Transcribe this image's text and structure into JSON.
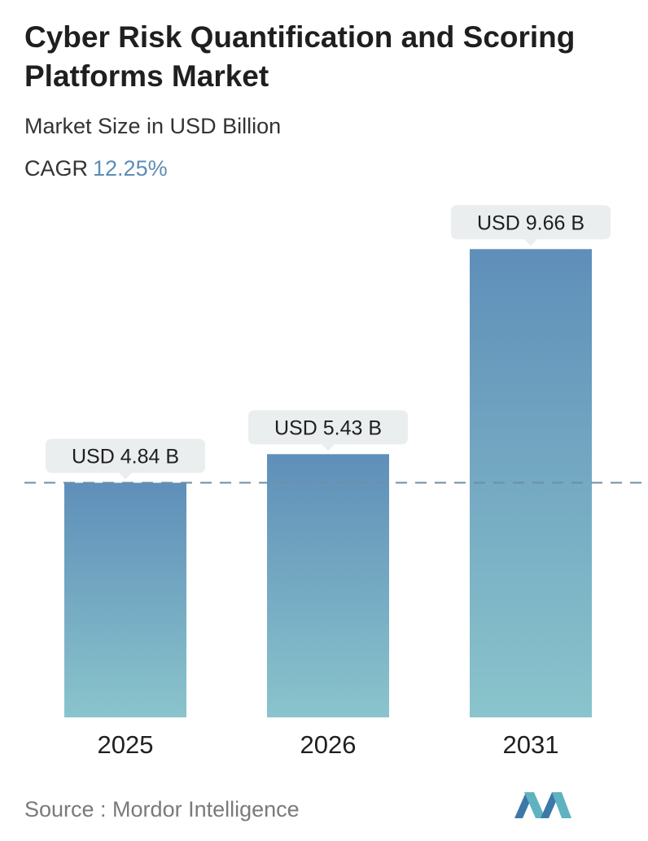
{
  "header": {
    "title": "Cyber Risk Quantification and Scoring Platforms Market",
    "subtitle": "Market Size in USD Billion",
    "cagr_label": "CAGR",
    "cagr_value": "12.25%"
  },
  "chart_data": {
    "type": "bar",
    "categories": [
      "2025",
      "2026",
      "2031"
    ],
    "values": [
      4.84,
      5.43,
      9.66
    ],
    "labels": [
      "USD 4.84 B",
      "USD 5.43 B",
      "USD 9.66 B"
    ],
    "ylim": [
      0,
      10
    ],
    "grid": false,
    "reference_line_value": 4.84,
    "colors": {
      "bar_top": "#5f8fb9",
      "bar_bottom": "#8ac4cc",
      "callout_bg": "#eaeeef",
      "reference_line": "#6d8fa6"
    }
  },
  "footer": {
    "source_text": "Source :  Mordor Intelligence",
    "logo_icon": "mordor-intelligence-logo-icon"
  }
}
